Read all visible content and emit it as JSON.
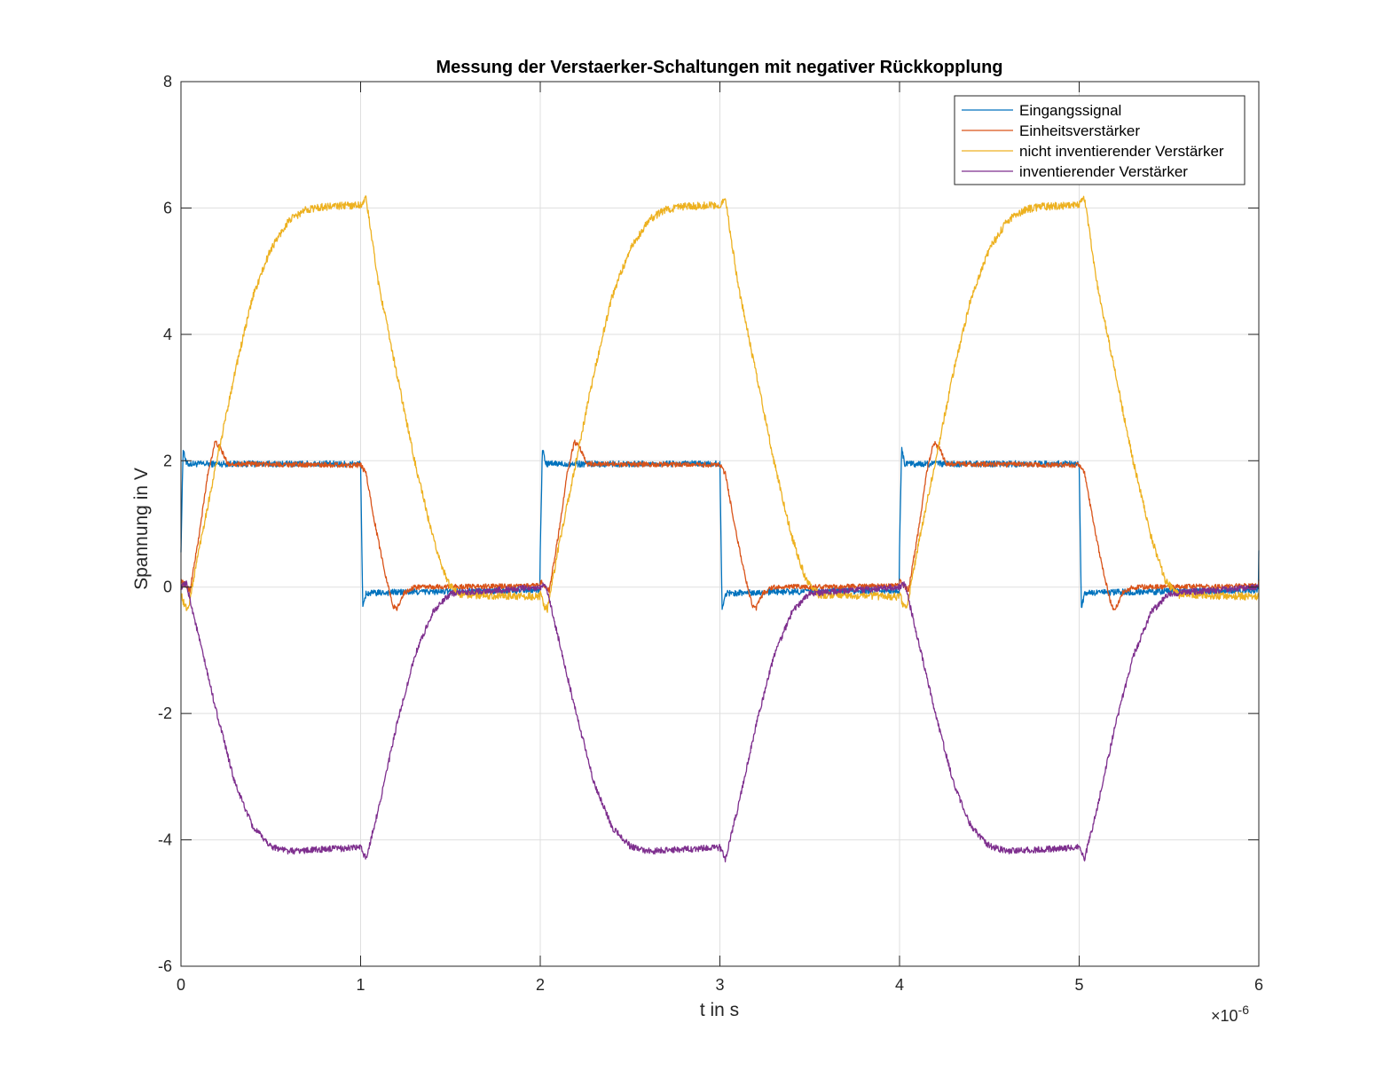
{
  "chart_data": {
    "type": "line",
    "title": "Messung der Verstaerker-Schaltungen mit negativer Rückkopplung",
    "xlabel": "t in s",
    "ylabel": "Spannung in V",
    "x_exponent_base": "×10",
    "x_exponent_power": "-6",
    "x_scale": 1e-06,
    "xlim": [
      0,
      6
    ],
    "ylim": [
      -6,
      8
    ],
    "xticks": [
      0,
      1,
      2,
      3,
      4,
      5,
      6
    ],
    "yticks": [
      -6,
      -4,
      -2,
      0,
      2,
      4,
      6,
      8
    ],
    "grid": true,
    "legend_position": "top-right",
    "period": 2,
    "series": [
      {
        "name": "Eingangssignal",
        "color": "#0072BD",
        "noise": 0.05,
        "period_points": [
          [
            0,
            0.6
          ],
          [
            0.012,
            2.2
          ],
          [
            0.03,
            1.95
          ],
          [
            0.2,
            1.95
          ],
          [
            1.0,
            1.95
          ],
          [
            1.012,
            -0.35
          ],
          [
            1.03,
            -0.1
          ],
          [
            1.2,
            -0.08
          ],
          [
            2.0,
            -0.05
          ]
        ]
      },
      {
        "name": "Einheitsverstärker",
        "color": "#D95319",
        "noise": 0.04,
        "period_points": [
          [
            0,
            0.1
          ],
          [
            0.05,
            -0.05
          ],
          [
            0.1,
            0.8
          ],
          [
            0.15,
            1.8
          ],
          [
            0.19,
            2.3
          ],
          [
            0.22,
            2.2
          ],
          [
            0.26,
            1.95
          ],
          [
            1.0,
            1.93
          ],
          [
            1.03,
            1.8
          ],
          [
            1.08,
            1.0
          ],
          [
            1.13,
            0.3
          ],
          [
            1.18,
            -0.3
          ],
          [
            1.2,
            -0.35
          ],
          [
            1.24,
            -0.1
          ],
          [
            1.3,
            0.0
          ],
          [
            2.0,
            0.02
          ]
        ]
      },
      {
        "name": "nicht inventierender Verstärker",
        "color": "#EDB120",
        "noise": 0.06,
        "period_points": [
          [
            0,
            -0.1
          ],
          [
            0.02,
            -0.3
          ],
          [
            0.04,
            -0.35
          ],
          [
            0.1,
            0.6
          ],
          [
            0.2,
            2.0
          ],
          [
            0.3,
            3.4
          ],
          [
            0.4,
            4.6
          ],
          [
            0.5,
            5.35
          ],
          [
            0.6,
            5.8
          ],
          [
            0.7,
            5.98
          ],
          [
            0.8,
            6.02
          ],
          [
            1.0,
            6.05
          ],
          [
            1.03,
            6.15
          ],
          [
            1.1,
            4.8
          ],
          [
            1.2,
            3.4
          ],
          [
            1.3,
            2.0
          ],
          [
            1.4,
            0.8
          ],
          [
            1.48,
            0.1
          ],
          [
            1.55,
            -0.12
          ],
          [
            2.0,
            -0.15
          ]
        ]
      },
      {
        "name": "inventierender Verstärker",
        "color": "#7E2F8E",
        "noise": 0.05,
        "period_points": [
          [
            0,
            0.0
          ],
          [
            0.03,
            0.05
          ],
          [
            0.1,
            -0.8
          ],
          [
            0.2,
            -2.0
          ],
          [
            0.3,
            -3.1
          ],
          [
            0.4,
            -3.8
          ],
          [
            0.5,
            -4.1
          ],
          [
            0.6,
            -4.18
          ],
          [
            0.8,
            -4.15
          ],
          [
            1.0,
            -4.12
          ],
          [
            1.03,
            -4.3
          ],
          [
            1.1,
            -3.5
          ],
          [
            1.2,
            -2.2
          ],
          [
            1.3,
            -1.1
          ],
          [
            1.4,
            -0.4
          ],
          [
            1.5,
            -0.1
          ],
          [
            2.0,
            0.0
          ]
        ]
      }
    ]
  }
}
